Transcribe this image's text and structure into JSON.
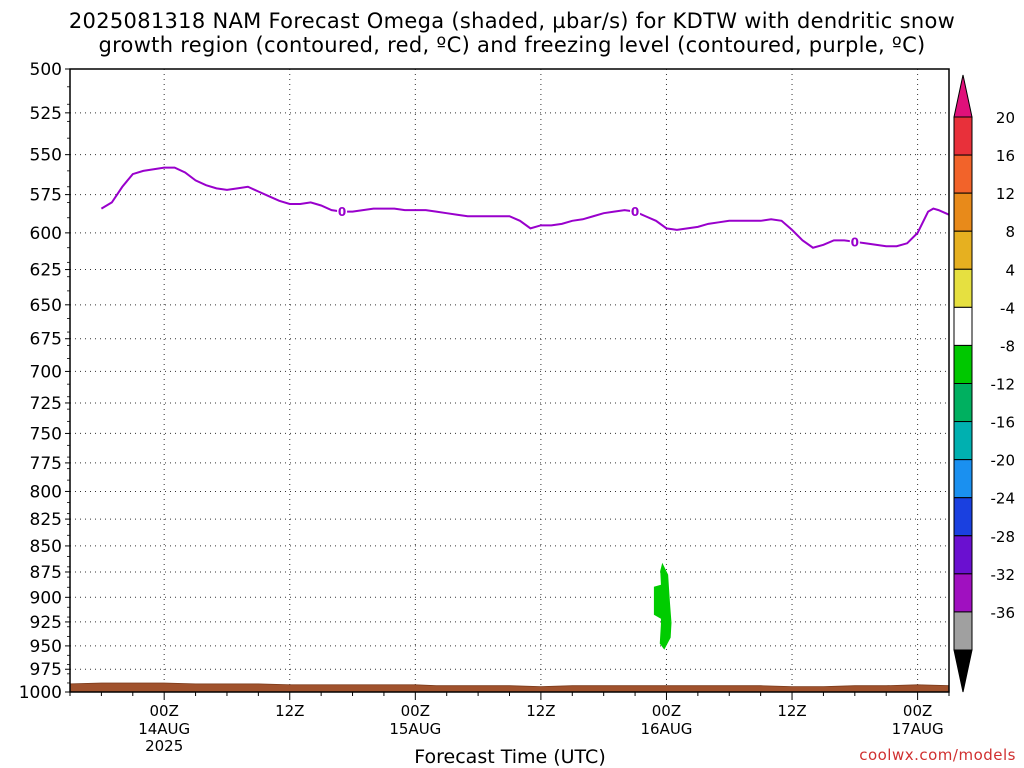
{
  "title": {
    "line1": "2025081318 NAM Forecast Omega (shaded, µbar/s) for KDTW with dendritic snow",
    "line2": "growth region (contoured, red, ºC) and freezing level (contoured, purple, ºC)"
  },
  "credit": "coolwx.com/models",
  "colors": {
    "freezing_line": "#9900cc",
    "terrain": "#a0522d",
    "omega_fill": "#00cc00"
  },
  "chart_data": {
    "type": "area",
    "xlabel": "Forecast Time (UTC)",
    "ylabel": "",
    "yaxis": {
      "label_values": [
        500,
        525,
        550,
        575,
        600,
        625,
        650,
        675,
        700,
        725,
        750,
        775,
        800,
        825,
        850,
        875,
        900,
        925,
        950,
        975,
        1000
      ],
      "range": [
        500,
        1000
      ],
      "scale": "log-pressure",
      "inverted": true
    },
    "xaxis": {
      "range_hours": [
        -9,
        75
      ],
      "ticks": [
        {
          "hour": 0,
          "label": "00Z",
          "sub1": "14AUG",
          "sub2": "2025"
        },
        {
          "hour": 12,
          "label": "12Z",
          "sub1": "",
          "sub2": ""
        },
        {
          "hour": 24,
          "label": "00Z",
          "sub1": "15AUG",
          "sub2": ""
        },
        {
          "hour": 36,
          "label": "12Z",
          "sub1": "",
          "sub2": ""
        },
        {
          "hour": 48,
          "label": "00Z",
          "sub1": "16AUG",
          "sub2": ""
        },
        {
          "hour": 60,
          "label": "12Z",
          "sub1": "",
          "sub2": ""
        },
        {
          "hour": 72,
          "label": "00Z",
          "sub1": "17AUG",
          "sub2": ""
        }
      ]
    },
    "grid": true,
    "freezing_level": {
      "contour_label": "0",
      "label_hours": [
        17,
        45,
        66
      ],
      "points": [
        [
          -6,
          584
        ],
        [
          -5,
          580
        ],
        [
          -4,
          570
        ],
        [
          -3,
          562
        ],
        [
          -2,
          560
        ],
        [
          -1,
          559
        ],
        [
          0,
          558
        ],
        [
          1,
          558
        ],
        [
          2,
          561
        ],
        [
          3,
          566
        ],
        [
          4,
          569
        ],
        [
          5,
          571
        ],
        [
          6,
          572
        ],
        [
          7,
          571
        ],
        [
          8,
          570
        ],
        [
          9,
          573
        ],
        [
          10,
          576
        ],
        [
          11,
          579
        ],
        [
          12,
          581
        ],
        [
          13,
          581
        ],
        [
          14,
          580
        ],
        [
          15,
          582
        ],
        [
          16,
          585
        ],
        [
          17,
          586
        ],
        [
          18,
          586
        ],
        [
          19,
          585
        ],
        [
          20,
          584
        ],
        [
          21,
          584
        ],
        [
          22,
          584
        ],
        [
          23,
          585
        ],
        [
          24,
          585
        ],
        [
          25,
          585
        ],
        [
          26,
          586
        ],
        [
          27,
          587
        ],
        [
          28,
          588
        ],
        [
          29,
          589
        ],
        [
          30,
          589
        ],
        [
          31,
          589
        ],
        [
          32,
          589
        ],
        [
          33,
          589
        ],
        [
          34,
          592
        ],
        [
          35,
          597
        ],
        [
          36,
          595
        ],
        [
          37,
          595
        ],
        [
          38,
          594
        ],
        [
          39,
          592
        ],
        [
          40,
          591
        ],
        [
          41,
          589
        ],
        [
          42,
          587
        ],
        [
          43,
          586
        ],
        [
          44,
          585
        ],
        [
          45,
          586
        ],
        [
          46,
          589
        ],
        [
          47,
          592
        ],
        [
          48,
          597
        ],
        [
          49,
          598
        ],
        [
          50,
          597
        ],
        [
          51,
          596
        ],
        [
          52,
          594
        ],
        [
          53,
          593
        ],
        [
          54,
          592
        ],
        [
          55,
          592
        ],
        [
          56,
          592
        ],
        [
          57,
          592
        ],
        [
          58,
          591
        ],
        [
          59,
          592
        ],
        [
          60,
          598
        ],
        [
          61,
          605
        ],
        [
          62,
          610
        ],
        [
          63,
          608
        ],
        [
          64,
          605
        ],
        [
          65,
          605
        ],
        [
          66,
          606
        ],
        [
          67,
          607
        ],
        [
          68,
          608
        ],
        [
          69,
          609
        ],
        [
          70,
          609
        ],
        [
          71,
          607
        ],
        [
          72,
          600
        ],
        [
          73,
          586
        ],
        [
          73.5,
          584
        ],
        [
          74,
          585
        ],
        [
          75,
          588
        ]
      ]
    },
    "omega_shading": [
      {
        "bin": "-8 to -4",
        "color": "#00cc00",
        "hour_range": [
          46.8,
          48.4
        ],
        "pressure_range": [
          866,
          954
        ]
      }
    ],
    "terrain": {
      "points": [
        [
          -9,
          991
        ],
        [
          -6,
          990
        ],
        [
          -3,
          990
        ],
        [
          0,
          990
        ],
        [
          3,
          991
        ],
        [
          6,
          991
        ],
        [
          9,
          991
        ],
        [
          12,
          992
        ],
        [
          15,
          992
        ],
        [
          18,
          992
        ],
        [
          21,
          992
        ],
        [
          24,
          992
        ],
        [
          26,
          993
        ],
        [
          30,
          993
        ],
        [
          33,
          993
        ],
        [
          36,
          994
        ],
        [
          39,
          993
        ],
        [
          42,
          993
        ],
        [
          45,
          993
        ],
        [
          48,
          993
        ],
        [
          51,
          993
        ],
        [
          54,
          993
        ],
        [
          57,
          993
        ],
        [
          60,
          994
        ],
        [
          63,
          994
        ],
        [
          66,
          993
        ],
        [
          69,
          993
        ],
        [
          72,
          992
        ],
        [
          75,
          993
        ]
      ]
    },
    "colorbar": {
      "labels": [
        "20",
        "16",
        "12",
        "8",
        "4",
        "-4",
        "-8",
        "-12",
        "-16",
        "-20",
        "-24",
        "-28",
        "-32",
        "-36"
      ],
      "bins": [
        {
          "lo": 16,
          "hi": 20,
          "color": "#e8303a"
        },
        {
          "lo": 12,
          "hi": 16,
          "color": "#f2632a"
        },
        {
          "lo": 8,
          "hi": 12,
          "color": "#e88a1a"
        },
        {
          "lo": 4,
          "hi": 8,
          "color": "#e6b020"
        },
        {
          "lo": 0,
          "hi": 4,
          "color": "#e6e040"
        },
        {
          "lo": -4,
          "hi": 0,
          "color": "#ffffff"
        },
        {
          "lo": -8,
          "hi": -4,
          "color": "#00c800"
        },
        {
          "lo": -12,
          "hi": -8,
          "color": "#00b060"
        },
        {
          "lo": -16,
          "hi": -12,
          "color": "#00b0b0"
        },
        {
          "lo": -20,
          "hi": -16,
          "color": "#1a90f0"
        },
        {
          "lo": -24,
          "hi": -20,
          "color": "#1a40e0"
        },
        {
          "lo": -28,
          "hi": -24,
          "color": "#6a10d0"
        },
        {
          "lo": -32,
          "hi": -28,
          "color": "#a010c0"
        },
        {
          "lo": -36,
          "hi": -32,
          "color": "#a0a0a0"
        }
      ],
      "top_arrow_color": "#e0107a",
      "bottom_arrow_color": "#000000"
    }
  }
}
